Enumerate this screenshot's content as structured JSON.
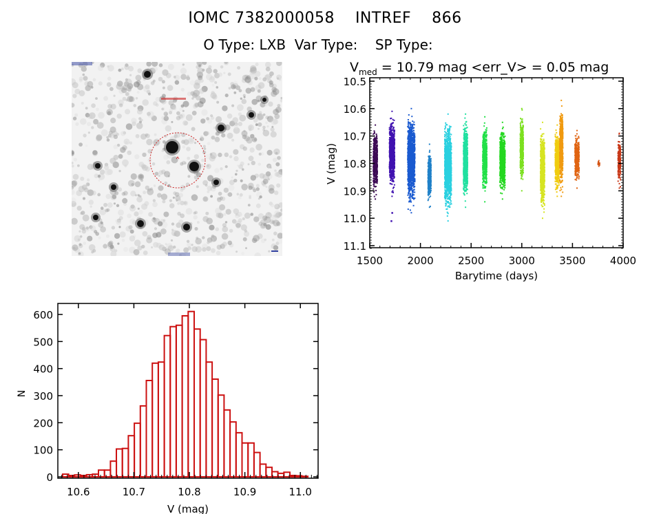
{
  "header": {
    "line1": "IOMC 7382000058    INTREF    866",
    "line2": "O Type: LXB  Var Type:    SP Type:"
  },
  "sky_image": {
    "description_icon": "sky-finder-chart",
    "circle_color": "#cc2222"
  },
  "chart_data": [
    {
      "type": "scatter",
      "name": "light-curve",
      "title_main": "V",
      "title_sub": "med",
      "title_rest": " = 10.79 mag <err_V> = 0.05 mag",
      "xlabel": "Barytime (days)",
      "ylabel": "V (mag)",
      "xlim": [
        1500,
        4000
      ],
      "ylim": [
        11.12,
        10.49
      ],
      "xticks": [
        1500,
        2000,
        2500,
        3000,
        3500,
        4000
      ],
      "xtick_labels": [
        "1500",
        "2000",
        "2500",
        "3000",
        "3500",
        "4000"
      ],
      "yticks": [
        10.5,
        10.6,
        10.7,
        10.8,
        10.9,
        11.0,
        11.1
      ],
      "ytick_labels": [
        "10.5",
        "10.6",
        "10.7",
        "10.8",
        "10.9",
        "11.0",
        "11.1"
      ],
      "clusters": [
        {
          "x0": 1535,
          "x1": 1575,
          "ymin": 10.66,
          "ymax": 10.93,
          "color": "#3d0a55"
        },
        {
          "x0": 1695,
          "x1": 1745,
          "ymin": 10.61,
          "ymax": 10.92,
          "color": "#4012b0",
          "outliers": [
            [
              1720,
              10.98
            ],
            [
              1712,
              11.01
            ]
          ]
        },
        {
          "x0": 1875,
          "x1": 1945,
          "ymin": 10.6,
          "ymax": 10.98,
          "color": "#1a5ad0"
        },
        {
          "x0": 2075,
          "x1": 2105,
          "ymin": 10.73,
          "ymax": 10.96,
          "color": "#1f80c8"
        },
        {
          "x0": 2240,
          "x1": 2305,
          "ymin": 10.62,
          "ymax": 11.01,
          "color": "#2ad0e0"
        },
        {
          "x0": 2425,
          "x1": 2465,
          "ymin": 10.62,
          "ymax": 10.96,
          "color": "#20e0a0"
        },
        {
          "x0": 2615,
          "x1": 2655,
          "ymin": 10.63,
          "ymax": 10.94,
          "color": "#22e048"
        },
        {
          "x0": 2785,
          "x1": 2835,
          "ymin": 10.65,
          "ymax": 10.93,
          "color": "#24d820"
        },
        {
          "x0": 2985,
          "x1": 3015,
          "ymin": 10.6,
          "ymax": 10.9,
          "color": "#7ce020"
        },
        {
          "x0": 3185,
          "x1": 3225,
          "ymin": 10.65,
          "ymax": 11.0,
          "color": "#d6e422"
        },
        {
          "x0": 3330,
          "x1": 3370,
          "ymin": 10.66,
          "ymax": 10.92,
          "color": "#f0cc10"
        },
        {
          "x0": 3375,
          "x1": 3405,
          "ymin": 10.57,
          "ymax": 10.92,
          "color": "#f09a10"
        },
        {
          "x0": 3525,
          "x1": 3565,
          "ymin": 10.68,
          "ymax": 10.89,
          "color": "#e06412"
        },
        {
          "x0": 3752,
          "x1": 3768,
          "ymin": 10.79,
          "ymax": 10.81,
          "color": "#d45414"
        },
        {
          "x0": 3950,
          "x1": 3975,
          "ymin": 10.69,
          "ymax": 10.89,
          "color": "#c83818"
        }
      ]
    },
    {
      "type": "bar",
      "name": "histogram",
      "xlabel": "V (mag)",
      "ylabel": "N",
      "xlim": [
        10.563,
        11.032
      ],
      "ylim": [
        0,
        635
      ],
      "bin_start": 10.5715,
      "bin_width": 0.01078,
      "values": [
        10,
        5,
        7,
        5,
        8,
        10,
        25,
        25,
        58,
        103,
        105,
        152,
        198,
        262,
        356,
        420,
        424,
        522,
        555,
        560,
        595,
        611,
        546,
        507,
        424,
        361,
        302,
        247,
        203,
        163,
        125,
        125,
        90,
        47,
        35,
        19,
        13,
        17,
        5,
        4,
        2
      ],
      "xticks": [
        10.6,
        10.7,
        10.8,
        10.9,
        11.0
      ],
      "xtick_labels": [
        "10.6",
        "10.7",
        "10.8",
        "10.9",
        "11.0"
      ],
      "yticks": [
        0,
        100,
        200,
        300,
        400,
        500,
        600
      ],
      "ytick_labels": [
        "0",
        "100",
        "200",
        "300",
        "400",
        "500",
        "600"
      ],
      "bar_color": "#cc1111"
    }
  ]
}
